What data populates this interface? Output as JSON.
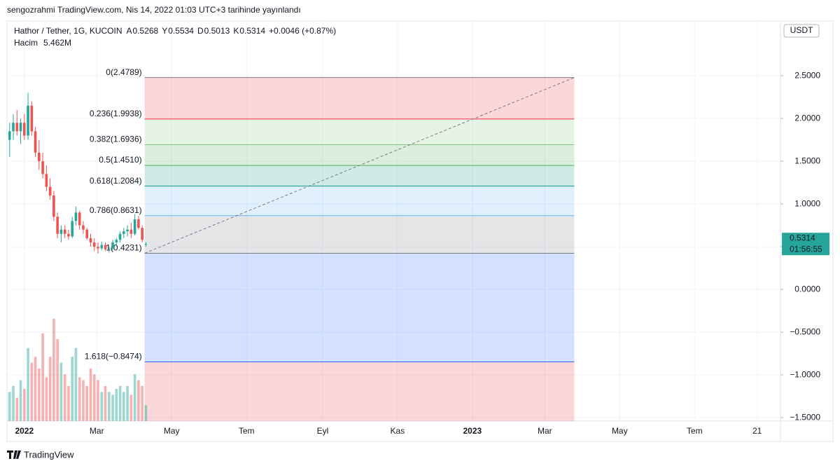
{
  "chart_data": {
    "type": "candlestick",
    "publisher": "sengozrahmi TradingView.com, Nis 14, 2022 01:03 UTC+3 tarihinde yayınlandı",
    "title": "Hathor / Tether, 1G, KUCOIN",
    "ohlc_legend": [
      {
        "label": "A",
        "value": 0.5268
      },
      {
        "label": "Y",
        "value": 0.5534
      },
      {
        "label": "D",
        "value": 0.5013
      },
      {
        "label": "K",
        "value": 0.5314
      }
    ],
    "change_label": "+0.0046 (+0.87%)",
    "volume_name": "Hacim",
    "volume_label": "5.462M",
    "currency": "USDT",
    "last_price": 0.5314,
    "countdown": "01:56:55",
    "brand": "TradingView",
    "up_color": "#26a69a",
    "down_color": "#ef5350",
    "grid": true,
    "x": [
      -12,
      -9,
      -6,
      -3,
      0,
      3,
      6,
      9,
      12,
      15,
      18,
      21,
      24,
      27,
      30,
      33,
      36,
      39,
      42,
      45,
      48,
      51,
      54,
      57,
      60,
      63,
      66,
      69,
      72,
      75,
      78,
      81,
      84,
      87,
      90,
      93,
      96,
      99
    ],
    "open": [
      1.75,
      1.85,
      1.95,
      1.85,
      1.95,
      1.8,
      2.15,
      1.85,
      1.6,
      1.5,
      1.35,
      1.2,
      1.1,
      0.85,
      0.65,
      0.7,
      0.65,
      0.62,
      0.8,
      0.9,
      0.75,
      0.7,
      0.6,
      0.55,
      0.5,
      0.48,
      0.52,
      0.47,
      0.48,
      0.55,
      0.58,
      0.65,
      0.68,
      0.7,
      0.65,
      0.82,
      0.72,
      0.5268
    ],
    "high": [
      1.95,
      2.05,
      2.1,
      2.0,
      2.05,
      2.3,
      2.2,
      1.9,
      1.75,
      1.6,
      1.45,
      1.3,
      1.15,
      0.9,
      0.75,
      0.75,
      0.7,
      0.85,
      0.97,
      0.92,
      0.8,
      0.72,
      0.65,
      0.6,
      0.55,
      0.56,
      0.55,
      0.5,
      0.58,
      0.6,
      0.68,
      0.72,
      0.75,
      0.78,
      0.88,
      0.86,
      0.75,
      0.5534
    ],
    "low": [
      1.55,
      1.75,
      1.8,
      1.7,
      1.75,
      1.75,
      1.8,
      1.55,
      1.4,
      1.3,
      1.15,
      1.05,
      0.8,
      0.6,
      0.55,
      0.6,
      0.58,
      0.6,
      0.75,
      0.7,
      0.65,
      0.58,
      0.5,
      0.45,
      0.42,
      0.46,
      0.45,
      0.43,
      0.46,
      0.5,
      0.55,
      0.6,
      0.62,
      0.6,
      0.63,
      0.7,
      0.55,
      0.5013
    ],
    "close": [
      1.85,
      1.95,
      1.85,
      1.95,
      1.8,
      2.15,
      1.85,
      1.6,
      1.5,
      1.35,
      1.2,
      1.1,
      0.85,
      0.65,
      0.7,
      0.65,
      0.62,
      0.8,
      0.9,
      0.75,
      0.7,
      0.6,
      0.55,
      0.5,
      0.48,
      0.52,
      0.47,
      0.48,
      0.55,
      0.58,
      0.65,
      0.68,
      0.7,
      0.65,
      0.82,
      0.72,
      0.58,
      0.5314
    ],
    "volume": [
      10,
      12,
      8,
      14,
      11,
      25,
      20,
      22,
      18,
      30,
      15,
      22,
      35,
      28,
      20,
      16,
      12,
      22,
      25,
      15,
      14,
      12,
      18,
      16,
      14,
      10,
      12,
      10,
      9,
      11,
      12,
      10,
      12,
      9,
      16,
      14,
      12,
      5.462
    ],
    "xlim": [
      -13,
      616
    ],
    "xticks": [
      {
        "value": 0,
        "label": "2022"
      },
      {
        "value": 59,
        "label": "Mar"
      },
      {
        "value": 120,
        "label": "May"
      },
      {
        "value": 181,
        "label": "Tem"
      },
      {
        "value": 243,
        "label": "Eyl"
      },
      {
        "value": 304,
        "label": "Kas"
      },
      {
        "value": 365,
        "label": "2023"
      },
      {
        "value": 424,
        "label": "Mar"
      },
      {
        "value": 485,
        "label": "May"
      },
      {
        "value": 546,
        "label": "Tem"
      },
      {
        "value": 597,
        "label": "21"
      }
    ],
    "ylim": [
      -1.54,
      3.14
    ],
    "yticks": [
      {
        "value": -1.5,
        "label": "−1.5000"
      },
      {
        "value": -1,
        "label": "−1.0000"
      },
      {
        "value": -0.5,
        "label": "−0.5000"
      },
      {
        "value": 0,
        "label": "0.0000"
      },
      {
        "value": 0.5,
        "label": "0.5000"
      },
      {
        "value": 1,
        "label": "1.0000"
      },
      {
        "value": 1.5,
        "label": "1.5000"
      },
      {
        "value": 2,
        "label": "2.0000"
      },
      {
        "value": 2.5,
        "label": "2.5000"
      }
    ],
    "fib": {
      "x": [
        98,
        448
      ],
      "levels": [
        {
          "label": "0(2.4789)",
          "value": 2.4789,
          "color": "#787b86",
          "fill": "#f23645"
        },
        {
          "label": "0.236(1.9938)",
          "value": 1.9938,
          "color": "#f23645",
          "fill": "#81c784"
        },
        {
          "label": "0.382(1.6936)",
          "value": 1.6936,
          "color": "#81c784",
          "fill": "#4caf50"
        },
        {
          "label": "0.5(1.4510)",
          "value": 1.451,
          "color": "#4caf50",
          "fill": "#089981"
        },
        {
          "label": "0.618(1.2084)",
          "value": 1.2084,
          "color": "#089981",
          "fill": "#64b5f6"
        },
        {
          "label": "0.786(0.8631)",
          "value": 0.8631,
          "color": "#64b5f6",
          "fill": "#787b86"
        },
        {
          "label": "1(0.4231)",
          "value": 0.4231,
          "color": "#787b86",
          "fill": "#2962ff"
        },
        {
          "label": "1.618(−0.8474)",
          "value": -0.8474,
          "color": "#2962ff",
          "fill": "#f23645"
        }
      ]
    }
  }
}
